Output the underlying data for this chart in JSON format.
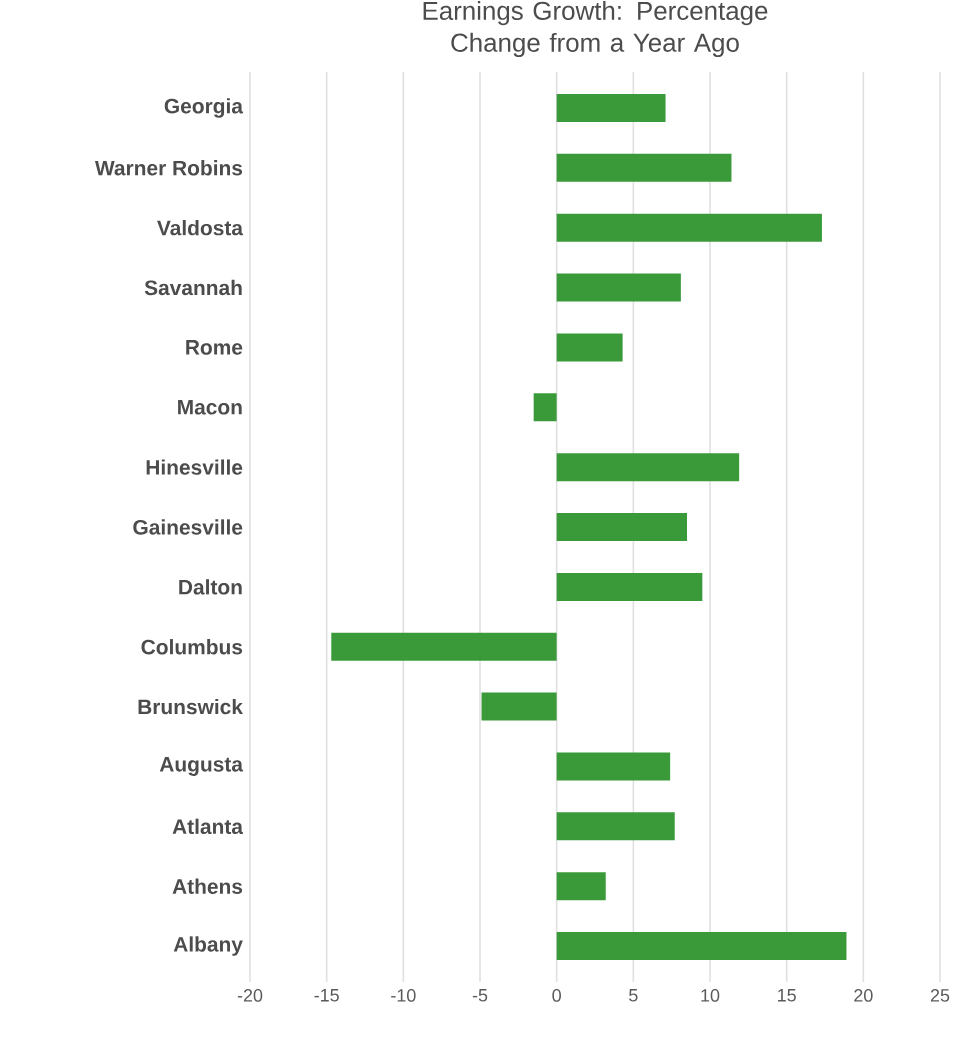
{
  "chart_data": {
    "type": "bar",
    "orientation": "horizontal",
    "title": "Earnings Growth: Percentage Change from a Year Ago",
    "categories": [
      "Georgia",
      "Warner Robins",
      "Valdosta",
      "Savannah",
      "Rome",
      "Macon",
      "Hinesville",
      "Gainesville",
      "Dalton",
      "Columbus",
      "Brunswick",
      "Augusta",
      "Atlanta",
      "Athens",
      "Albany"
    ],
    "values": [
      7.1,
      11.4,
      17.3,
      8.1,
      4.3,
      -1.5,
      11.9,
      8.5,
      9.5,
      -14.7,
      -4.9,
      7.4,
      7.7,
      3.2,
      18.9
    ],
    "color": "#3a9a3a",
    "xlim": [
      -20,
      25
    ],
    "xticks": [
      -20,
      -15,
      -10,
      -5,
      0,
      5,
      10,
      15,
      20,
      25
    ],
    "grid": "x"
  }
}
